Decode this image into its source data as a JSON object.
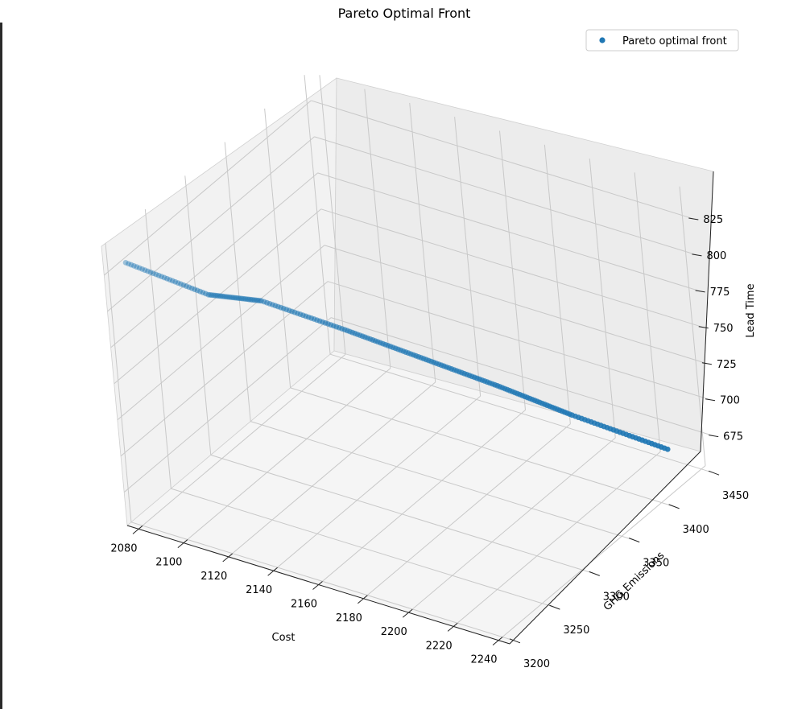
{
  "chart_data": {
    "type": "scatter",
    "projection": "3d",
    "title": "Pareto Optimal Front",
    "xlabel": "Cost",
    "ylabel": "GHG Emissions",
    "zlabel": "Lead Time",
    "xlim": [
      2075,
      2245
    ],
    "ylim": [
      3195,
      3455
    ],
    "zlim": [
      652,
      845
    ],
    "xticks": [
      2080,
      2100,
      2120,
      2140,
      2160,
      2180,
      2200,
      2220,
      2240
    ],
    "yticks": [
      3200,
      3250,
      3300,
      3350,
      3400,
      3450
    ],
    "zticks": [
      675,
      700,
      725,
      750,
      775,
      800,
      825
    ],
    "grid": true,
    "legend": {
      "position": "top-right",
      "entries": [
        "Pareto optimal front"
      ]
    },
    "series": [
      {
        "name": "Pareto optimal front",
        "color": "#1f77b4",
        "points": [
          {
            "x": 2225,
            "y": 3451,
            "z": 658
          },
          {
            "x": 2200,
            "y": 3407,
            "z": 690
          },
          {
            "x": 2180,
            "y": 3374,
            "z": 716
          },
          {
            "x": 2160,
            "y": 3339,
            "z": 742
          },
          {
            "x": 2140,
            "y": 3304,
            "z": 768
          },
          {
            "x": 2118,
            "y": 3266,
            "z": 795
          },
          {
            "x": 2105,
            "y": 3238,
            "z": 806
          },
          {
            "x": 2085,
            "y": 3196,
            "z": 838
          }
        ]
      }
    ]
  }
}
